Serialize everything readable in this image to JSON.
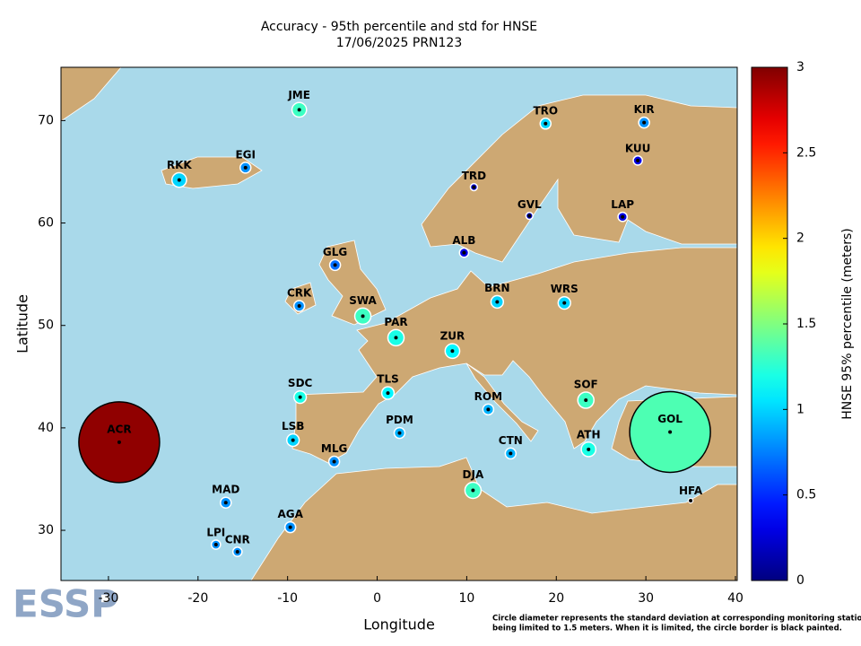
{
  "chart_data": {
    "type": "map",
    "title": "Accuracy - 95th percentile and std for HNSE",
    "subtitle": "17/06/2025 PRN123",
    "x_label": "Longitude",
    "y_label": "Latitude",
    "colorbar_label": "HNSE 95% percentile (meters)",
    "xlim": [
      -35.3,
      40.2
    ],
    "ylim": [
      25.1,
      75.2
    ],
    "xticks": [
      -30,
      -20,
      -10,
      0,
      10,
      20,
      30,
      40
    ],
    "yticks": [
      30,
      40,
      50,
      60,
      70
    ],
    "clim": [
      0,
      3
    ],
    "cticks": [
      0,
      0.5,
      1,
      1.5,
      2,
      2.5,
      3
    ],
    "size_limit": 1.5,
    "stations": [
      {
        "name": "JME",
        "lon": -8.7,
        "lat": 71.05,
        "value": 1.3,
        "std": 0.27
      },
      {
        "name": "TRO",
        "lon": 18.8,
        "lat": 69.7,
        "value": 1.0,
        "std": 0.2
      },
      {
        "name": "KIR",
        "lon": 29.8,
        "lat": 69.8,
        "value": 0.8,
        "std": 0.2
      },
      {
        "name": "KUU",
        "lon": 29.1,
        "lat": 66.1,
        "value": 0.3,
        "std": 0.17
      },
      {
        "name": "RKK",
        "lon": -22.1,
        "lat": 64.2,
        "value": 1.0,
        "std": 0.27
      },
      {
        "name": "EGI",
        "lon": -14.7,
        "lat": 65.4,
        "value": 0.8,
        "std": 0.2
      },
      {
        "name": "TRD",
        "lon": 10.8,
        "lat": 63.5,
        "value": 0.3,
        "std": 0.13
      },
      {
        "name": "GVL",
        "lon": 17.0,
        "lat": 60.7,
        "value": 0.2,
        "std": 0.13
      },
      {
        "name": "LAP",
        "lon": 27.4,
        "lat": 60.6,
        "value": 0.3,
        "std": 0.17
      },
      {
        "name": "ALB",
        "lon": 9.7,
        "lat": 57.1,
        "value": 0.3,
        "std": 0.17
      },
      {
        "name": "GLG",
        "lon": -4.7,
        "lat": 55.9,
        "value": 0.7,
        "std": 0.2
      },
      {
        "name": "CRK",
        "lon": -8.7,
        "lat": 51.9,
        "value": 0.8,
        "std": 0.2
      },
      {
        "name": "SWA",
        "lon": -1.6,
        "lat": 50.9,
        "value": 1.3,
        "std": 0.3
      },
      {
        "name": "BRN",
        "lon": 13.4,
        "lat": 52.3,
        "value": 1.0,
        "std": 0.23
      },
      {
        "name": "WRS",
        "lon": 20.9,
        "lat": 52.2,
        "value": 1.0,
        "std": 0.23
      },
      {
        "name": "PAR",
        "lon": 2.1,
        "lat": 48.8,
        "value": 1.2,
        "std": 0.3
      },
      {
        "name": "ZUR",
        "lon": 8.4,
        "lat": 47.5,
        "value": 1.1,
        "std": 0.27
      },
      {
        "name": "TLS",
        "lon": 1.2,
        "lat": 43.4,
        "value": 1.1,
        "std": 0.23
      },
      {
        "name": "SDC",
        "lon": -8.6,
        "lat": 43.0,
        "value": 1.2,
        "std": 0.23
      },
      {
        "name": "ROM",
        "lon": 12.4,
        "lat": 41.8,
        "value": 0.9,
        "std": 0.2
      },
      {
        "name": "SOF",
        "lon": 23.3,
        "lat": 42.7,
        "value": 1.3,
        "std": 0.3
      },
      {
        "name": "GOL",
        "lon": 32.7,
        "lat": 39.6,
        "value": 1.35,
        "std": 1.5
      },
      {
        "name": "ACR",
        "lon": -28.8,
        "lat": 38.6,
        "value": 2.95,
        "std": 1.5
      },
      {
        "name": "PDM",
        "lon": 2.5,
        "lat": 39.5,
        "value": 0.9,
        "std": 0.2
      },
      {
        "name": "LSB",
        "lon": -9.4,
        "lat": 38.8,
        "value": 1.0,
        "std": 0.23
      },
      {
        "name": "MLG",
        "lon": -4.8,
        "lat": 36.7,
        "value": 0.8,
        "std": 0.2
      },
      {
        "name": "CTN",
        "lon": 14.9,
        "lat": 37.5,
        "value": 0.9,
        "std": 0.2
      },
      {
        "name": "ATH",
        "lon": 23.6,
        "lat": 37.9,
        "value": 1.2,
        "std": 0.27
      },
      {
        "name": "DJA",
        "lon": 10.7,
        "lat": 33.9,
        "value": 1.3,
        "std": 0.3
      },
      {
        "name": "HFA",
        "lon": 35.0,
        "lat": 32.9,
        "value": 0.5,
        "std": 0.05
      },
      {
        "name": "MAD",
        "lon": -16.9,
        "lat": 32.7,
        "value": 0.8,
        "std": 0.2
      },
      {
        "name": "AGA",
        "lon": -9.7,
        "lat": 30.3,
        "value": 0.8,
        "std": 0.2
      },
      {
        "name": "LPI",
        "lon": -18.0,
        "lat": 28.6,
        "value": 0.8,
        "std": 0.17
      },
      {
        "name": "CNR",
        "lon": -15.6,
        "lat": 27.9,
        "value": 0.8,
        "std": 0.17
      }
    ],
    "footnote": [
      "Circle diameter represents the standard deviation at corresponding monitoring station,",
      "being limited to 1.5 meters. When it is limited, the circle border is black painted."
    ],
    "logo": "ESSP"
  }
}
